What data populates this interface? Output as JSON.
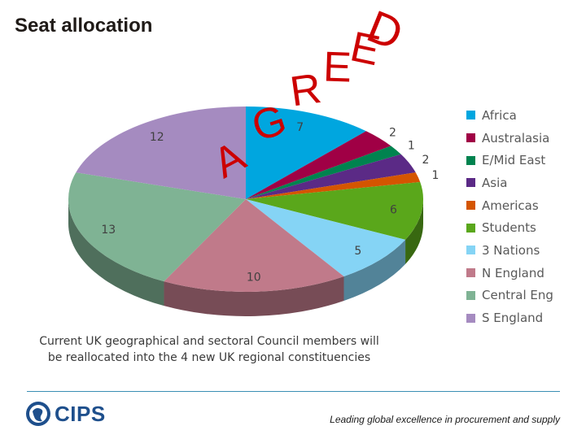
{
  "slide": {
    "title": "Seat allocation",
    "caption_line1": "Current UK geographical and sectoral Council members will",
    "caption_line2": "be reallocated into the 4 new UK regional constituencies",
    "tagline": "Leading global excellence in procurement and supply",
    "logo_text": "CIPS",
    "stamp_letters": [
      "A",
      "G",
      "R",
      "E",
      "E",
      "D"
    ],
    "stamp_color": "#cc0000",
    "rule_color": "#3b8fb4"
  },
  "chart_data": {
    "type": "pie",
    "title": "",
    "legend_position": "right",
    "categories": [
      "Africa",
      "Australasia",
      "E/Mid East",
      "Asia",
      "Americas",
      "Students",
      "3 Nations",
      "N England",
      "Central Eng",
      "S England"
    ],
    "values": [
      7,
      2,
      1,
      2,
      1,
      6,
      5,
      10,
      13,
      12
    ],
    "colors": [
      "#00a6df",
      "#a00045",
      "#00834f",
      "#5b2a86",
      "#d45500",
      "#5aa71b",
      "#85d4f5",
      "#c07a8a",
      "#7fb394",
      "#a58bc0"
    ],
    "data_labels": [
      "7",
      "2",
      "1",
      "2",
      "1",
      "6",
      "5",
      "10",
      "13",
      "12"
    ]
  }
}
